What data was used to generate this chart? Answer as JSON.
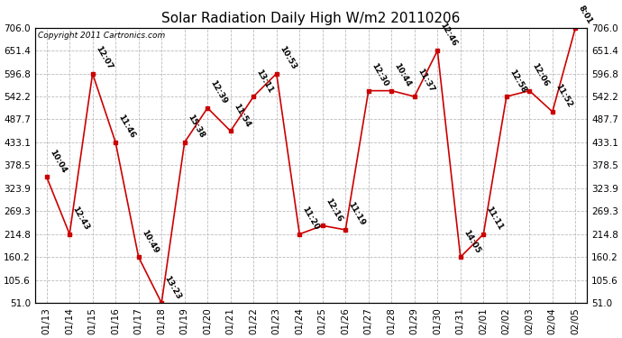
{
  "title": "Solar Radiation Daily High W/m2 20110206",
  "copyright": "Copyright 2011 Cartronics.com",
  "dates": [
    "01/13",
    "01/14",
    "01/15",
    "01/16",
    "01/17",
    "01/18",
    "01/19",
    "01/20",
    "01/21",
    "01/22",
    "01/23",
    "01/24",
    "01/25",
    "01/26",
    "01/27",
    "01/28",
    "01/29",
    "01/30",
    "01/31",
    "02/01",
    "02/02",
    "02/03",
    "02/04",
    "02/05"
  ],
  "values": [
    351.0,
    214.8,
    596.8,
    433.1,
    160.2,
    51.0,
    433.1,
    515.0,
    460.0,
    542.2,
    596.8,
    214.8,
    235.0,
    225.0,
    556.0,
    556.0,
    542.2,
    651.4,
    160.2,
    214.8,
    542.2,
    556.0,
    506.0,
    706.0
  ],
  "labels": [
    "10:04",
    "12:43",
    "12:07",
    "11:46",
    "10:49",
    "13:23",
    "15:38",
    "12:39",
    "11:54",
    "13:11",
    "10:53",
    "11:20",
    "12:16",
    "11:19",
    "12:30",
    "10:44",
    "11:37",
    "12:46",
    "14:05",
    "11:11",
    "12:58",
    "12:06",
    "11:52",
    "8:01"
  ],
  "ylim_min": 51.0,
  "ylim_max": 706.0,
  "yticks": [
    51.0,
    105.6,
    160.2,
    214.8,
    269.3,
    323.9,
    378.5,
    433.1,
    487.7,
    542.2,
    596.8,
    651.4,
    706.0
  ],
  "line_color": "#cc0000",
  "marker_color": "#cc0000",
  "bg_color": "#ffffff",
  "grid_color": "#bbbbbb",
  "title_fontsize": 11,
  "label_fontsize": 6.5,
  "tick_fontsize": 7.5,
  "figwidth": 6.9,
  "figheight": 3.75,
  "dpi": 100
}
